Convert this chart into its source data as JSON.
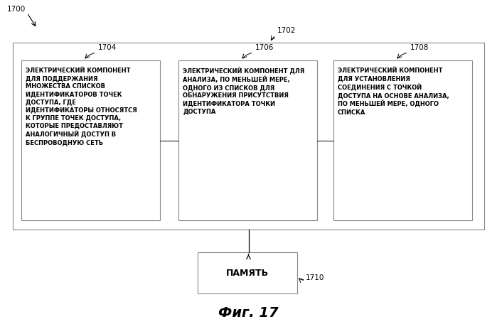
{
  "fig_width": 6.99,
  "fig_height": 4.63,
  "dpi": 100,
  "bg_color": "#ffffff",
  "label_1700": "1700",
  "label_1702": "1702",
  "label_1704": "1704",
  "label_1706": "1706",
  "label_1708": "1708",
  "label_1710": "1710",
  "box1_text": "ЭЛЕКТРИЧЕСКИЙ КОМПОНЕНТ\nДЛЯ ПОДДЕРЖАНИЯ\nМНОЖЕСТВА СПИСКОВ\nИДЕНТИФИКАТОРОВ ТОЧЕК\nДОСТУПА, ГДЕ\nИДЕНТИФИКАТОРЫ ОТНОСЯТСЯ\nК ГРУППЕ ТОЧЕК ДОСТУПА,\nКОТОРЫЕ ПРЕДОСТАВЛЯЮТ\nАНАЛОГИЧНЫЙ ДОСТУП В\nБЕСПРОВОДНУЮ СЕТЬ",
  "box2_text": "ЭЛЕКТРИЧЕСКИЙ КОМПОНЕНТ ДЛЯ\nАНАЛИЗА, ПО МЕНЬШЕЙ МЕРЕ,\nОДНОГО ИЗ СПИСКОВ ДЛЯ\nОБНАРУЖЕНИЯ ПРИСУТСТВИЯ\nИДЕНТИФИКАТОРА ТОЧКИ\nДОСТУПА",
  "box3_text": "ЭЛЕКТРИЧЕСКИЙ КОМПОНЕНТ\nДЛЯ УСТАНОВЛЕНИЯ\nСОЕДИНЕНИЯ С ТОЧКОЙ\nДОСТУПА НА ОСНОВЕ АНАЛИЗА,\nПО МЕНЬШЕЙ МЕРЕ, ОДНОГО\nСПИСКА",
  "memory_text": "ПАМЯТЬ",
  "fig_label": "Фиг. 17",
  "text_fontsize": 6.0,
  "label_fontsize": 7.5,
  "memory_fontsize": 9.0,
  "fig_label_fontsize": 14
}
